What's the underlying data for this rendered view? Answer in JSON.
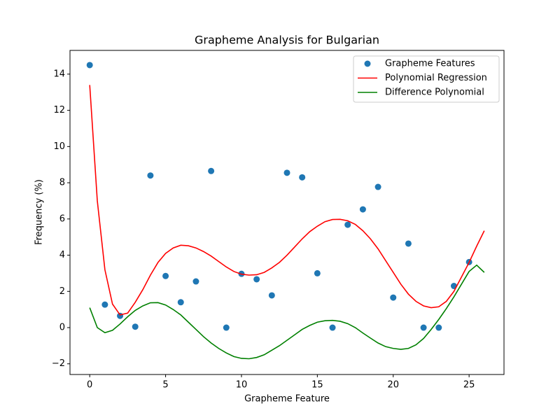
{
  "chart_data": {
    "type": "scatter",
    "title": "Grapheme Analysis for Bulgarian",
    "x_label": "Grapheme Feature",
    "y_label": "Frequency (%)",
    "xlim": [
      -1.3,
      27.3
    ],
    "ylim": [
      -2.59,
      15.31
    ],
    "xticks": [
      0,
      5,
      10,
      15,
      20,
      25
    ],
    "yticks": [
      {
        "value": -2,
        "label": "−2"
      },
      0,
      2,
      4,
      6,
      8,
      10,
      12,
      14
    ],
    "legend": "upper right",
    "series": [
      {
        "name": "Grapheme Features",
        "type": "scatter",
        "color": "#1f77b4",
        "x": [
          0,
          1,
          2,
          3,
          4,
          5,
          6,
          7,
          8,
          9,
          10,
          11,
          12,
          13,
          14,
          15,
          16,
          17,
          18,
          19,
          20,
          21,
          22,
          23,
          24,
          25
        ],
        "values": [
          14.5,
          1.27,
          0.65,
          0.05,
          8.4,
          2.85,
          1.4,
          2.55,
          8.65,
          0,
          2.97,
          2.67,
          1.78,
          8.55,
          8.3,
          3.0,
          0,
          5.68,
          6.53,
          7.77,
          1.66,
          4.64,
          0,
          0,
          2.3,
          3.62
        ]
      },
      {
        "name": "Polynomial Regression",
        "type": "line",
        "color": "#ff0000",
        "x": [
          0,
          0.5,
          1,
          1.5,
          2,
          2.5,
          3,
          3.5,
          4,
          4.5,
          5,
          5.5,
          6,
          6.5,
          7,
          7.5,
          8,
          8.5,
          9,
          9.5,
          10,
          10.5,
          11,
          11.5,
          12,
          12.5,
          13,
          13.5,
          14,
          14.5,
          15,
          15.5,
          16,
          16.5,
          17,
          17.5,
          18,
          18.5,
          19,
          19.5,
          20,
          20.5,
          21,
          21.5,
          22,
          22.5,
          23,
          23.5,
          24,
          24.5,
          25,
          25.5,
          26
        ],
        "values": [
          13.4,
          7.0,
          3.2,
          1.3,
          0.7,
          0.8,
          1.4,
          2.1,
          2.9,
          3.6,
          4.1,
          4.4,
          4.55,
          4.52,
          4.4,
          4.2,
          3.95,
          3.65,
          3.35,
          3.1,
          2.95,
          2.9,
          2.92,
          3.05,
          3.3,
          3.6,
          4.0,
          4.45,
          4.9,
          5.3,
          5.6,
          5.85,
          5.97,
          5.98,
          5.9,
          5.7,
          5.35,
          4.9,
          4.35,
          3.7,
          3.05,
          2.4,
          1.85,
          1.45,
          1.2,
          1.1,
          1.15,
          1.45,
          2.0,
          2.8,
          3.6,
          4.5,
          5.35
        ]
      },
      {
        "name": "Difference Polynomial",
        "type": "line",
        "color": "#008000",
        "x": [
          0,
          0.5,
          1,
          1.5,
          2,
          2.5,
          3,
          3.5,
          4,
          4.5,
          5,
          5.5,
          6,
          6.5,
          7,
          7.5,
          8,
          8.5,
          9,
          9.5,
          10,
          10.5,
          11,
          11.5,
          12,
          12.5,
          13,
          13.5,
          14,
          14.5,
          15,
          15.5,
          16,
          16.5,
          17,
          17.5,
          18,
          18.5,
          19,
          19.5,
          20,
          20.5,
          21,
          21.5,
          22,
          22.5,
          23,
          23.5,
          24,
          24.5,
          25,
          25.5,
          26
        ],
        "values": [
          1.1,
          0.0,
          -0.28,
          -0.15,
          0.2,
          0.6,
          0.95,
          1.2,
          1.37,
          1.38,
          1.25,
          1.0,
          0.7,
          0.3,
          -0.1,
          -0.5,
          -0.85,
          -1.15,
          -1.4,
          -1.6,
          -1.7,
          -1.72,
          -1.65,
          -1.5,
          -1.25,
          -1.0,
          -0.7,
          -0.4,
          -0.1,
          0.12,
          0.3,
          0.38,
          0.4,
          0.35,
          0.22,
          0.0,
          -0.3,
          -0.58,
          -0.85,
          -1.05,
          -1.15,
          -1.2,
          -1.15,
          -0.95,
          -0.6,
          -0.1,
          0.45,
          1.05,
          1.7,
          2.4,
          3.1,
          3.45,
          3.05
        ]
      }
    ]
  }
}
